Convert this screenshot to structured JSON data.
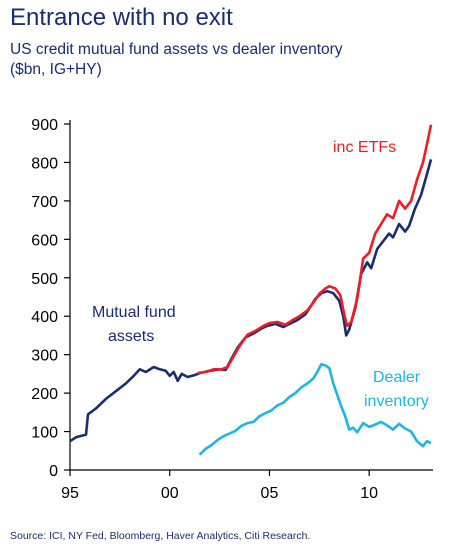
{
  "header": {
    "title": "Entrance with no exit",
    "subtitle_line1": "US credit mutual fund assets vs dealer inventory",
    "subtitle_line2": "($bn, IG+HY)"
  },
  "footer": {
    "source": "Source: ICI, NY Fed, Bloomberg, Haver Analytics, Citi Research."
  },
  "colors": {
    "mutual_fund": "#1a2e6e",
    "etf": "#ee1c25",
    "dealer": "#20b4e4",
    "axis": "#000000"
  },
  "chart_data": {
    "type": "line",
    "title": "Entrance with no exit",
    "subtitle": "US credit mutual fund assets vs dealer inventory ($bn, IG+HY)",
    "xlim": [
      1995,
      2013.2
    ],
    "ylim": [
      0,
      900
    ],
    "x_ticks": [
      1995,
      2000,
      2005,
      2010
    ],
    "x_tick_labels": [
      "95",
      "00",
      "05",
      "10"
    ],
    "y_ticks": [
      0,
      100,
      200,
      300,
      400,
      500,
      600,
      700,
      800,
      900
    ],
    "y_tick_labels": [
      "0",
      "100",
      "200",
      "300",
      "400",
      "500",
      "600",
      "700",
      "800",
      "900"
    ],
    "grid": false,
    "annotations": [
      {
        "text": "inc ETFs",
        "series": "inc ETFs"
      },
      {
        "text": "Mutual fund",
        "series": "Mutual fund assets"
      },
      {
        "text": "assets",
        "series": "Mutual fund assets"
      },
      {
        "text": "Dealer",
        "series": "Dealer inventory"
      },
      {
        "text": "inventory",
        "series": "Dealer inventory"
      }
    ],
    "series": [
      {
        "name": "Mutual fund assets",
        "color": "#1a2e6e",
        "points": [
          [
            1995,
            75
          ],
          [
            1995.3,
            85
          ],
          [
            1995.8,
            92
          ],
          [
            1995.9,
            145
          ],
          [
            1996.3,
            160
          ],
          [
            1996.8,
            185
          ],
          [
            1997.3,
            205
          ],
          [
            1997.8,
            225
          ],
          [
            1998.2,
            245
          ],
          [
            1998.5,
            262
          ],
          [
            1998.8,
            255
          ],
          [
            1999.2,
            268
          ],
          [
            1999.5,
            262
          ],
          [
            1999.8,
            258
          ],
          [
            2000,
            245
          ],
          [
            2000.2,
            255
          ],
          [
            2000.4,
            232
          ],
          [
            2000.6,
            250
          ],
          [
            2000.9,
            242
          ],
          [
            2001.3,
            248
          ],
          [
            2001.5,
            252
          ],
          [
            2002,
            258
          ],
          [
            2002.5,
            262
          ],
          [
            2002.8,
            260
          ],
          [
            2003.1,
            290
          ],
          [
            2003.4,
            318
          ],
          [
            2003.8,
            345
          ],
          [
            2004.2,
            355
          ],
          [
            2004.6,
            368
          ],
          [
            2004.9,
            375
          ],
          [
            2005.3,
            380
          ],
          [
            2005.7,
            372
          ],
          [
            2006,
            380
          ],
          [
            2006.4,
            390
          ],
          [
            2006.8,
            405
          ],
          [
            2007,
            420
          ],
          [
            2007.3,
            445
          ],
          [
            2007.6,
            460
          ],
          [
            2007.9,
            465
          ],
          [
            2008.2,
            460
          ],
          [
            2008.5,
            440
          ],
          [
            2008.7,
            400
          ],
          [
            2008.85,
            350
          ],
          [
            2009,
            365
          ],
          [
            2009.3,
            420
          ],
          [
            2009.6,
            510
          ],
          [
            2009.9,
            540
          ],
          [
            2010.1,
            525
          ],
          [
            2010.4,
            575
          ],
          [
            2010.7,
            595
          ],
          [
            2011,
            615
          ],
          [
            2011.2,
            605
          ],
          [
            2011.5,
            640
          ],
          [
            2011.8,
            620
          ],
          [
            2012,
            635
          ],
          [
            2012.3,
            680
          ],
          [
            2012.6,
            715
          ],
          [
            2012.9,
            770
          ],
          [
            2013.1,
            808
          ]
        ]
      },
      {
        "name": "inc ETFs",
        "color": "#ee1c25",
        "points": [
          [
            2001.4,
            252
          ],
          [
            2001.8,
            255
          ],
          [
            2002.2,
            262
          ],
          [
            2002.6,
            262
          ],
          [
            2002.9,
            268
          ],
          [
            2003.2,
            295
          ],
          [
            2003.5,
            322
          ],
          [
            2003.9,
            352
          ],
          [
            2004.3,
            362
          ],
          [
            2004.7,
            375
          ],
          [
            2005,
            382
          ],
          [
            2005.4,
            385
          ],
          [
            2005.8,
            378
          ],
          [
            2006.1,
            388
          ],
          [
            2006.5,
            400
          ],
          [
            2006.9,
            415
          ],
          [
            2007.2,
            435
          ],
          [
            2007.5,
            458
          ],
          [
            2007.8,
            472
          ],
          [
            2008,
            478
          ],
          [
            2008.3,
            472
          ],
          [
            2008.55,
            455
          ],
          [
            2008.75,
            405
          ],
          [
            2008.9,
            375
          ],
          [
            2009.1,
            385
          ],
          [
            2009.4,
            445
          ],
          [
            2009.7,
            550
          ],
          [
            2010,
            565
          ],
          [
            2010.3,
            615
          ],
          [
            2010.6,
            640
          ],
          [
            2010.9,
            665
          ],
          [
            2011.2,
            655
          ],
          [
            2011.5,
            700
          ],
          [
            2011.8,
            680
          ],
          [
            2012.1,
            700
          ],
          [
            2012.4,
            755
          ],
          [
            2012.7,
            800
          ],
          [
            2012.95,
            860
          ],
          [
            2013.1,
            898
          ]
        ]
      },
      {
        "name": "Dealer inventory",
        "color": "#20b4e4",
        "points": [
          [
            2001.5,
            40
          ],
          [
            2001.8,
            55
          ],
          [
            2002.1,
            65
          ],
          [
            2002.4,
            78
          ],
          [
            2002.7,
            88
          ],
          [
            2003,
            95
          ],
          [
            2003.3,
            102
          ],
          [
            2003.6,
            115
          ],
          [
            2003.9,
            122
          ],
          [
            2004.2,
            125
          ],
          [
            2004.5,
            140
          ],
          [
            2004.8,
            148
          ],
          [
            2005.1,
            155
          ],
          [
            2005.4,
            168
          ],
          [
            2005.7,
            175
          ],
          [
            2006,
            190
          ],
          [
            2006.3,
            200
          ],
          [
            2006.6,
            215
          ],
          [
            2006.9,
            225
          ],
          [
            2007.2,
            238
          ],
          [
            2007.4,
            255
          ],
          [
            2007.6,
            275
          ],
          [
            2007.8,
            272
          ],
          [
            2008,
            265
          ],
          [
            2008.2,
            225
          ],
          [
            2008.4,
            195
          ],
          [
            2008.6,
            165
          ],
          [
            2008.8,
            140
          ],
          [
            2009,
            105
          ],
          [
            2009.2,
            110
          ],
          [
            2009.4,
            98
          ],
          [
            2009.7,
            122
          ],
          [
            2010,
            112
          ],
          [
            2010.3,
            118
          ],
          [
            2010.6,
            125
          ],
          [
            2010.9,
            116
          ],
          [
            2011.2,
            105
          ],
          [
            2011.5,
            120
          ],
          [
            2011.8,
            108
          ],
          [
            2012.1,
            100
          ],
          [
            2012.4,
            75
          ],
          [
            2012.7,
            62
          ],
          [
            2012.9,
            75
          ],
          [
            2013.1,
            70
          ]
        ]
      }
    ]
  }
}
